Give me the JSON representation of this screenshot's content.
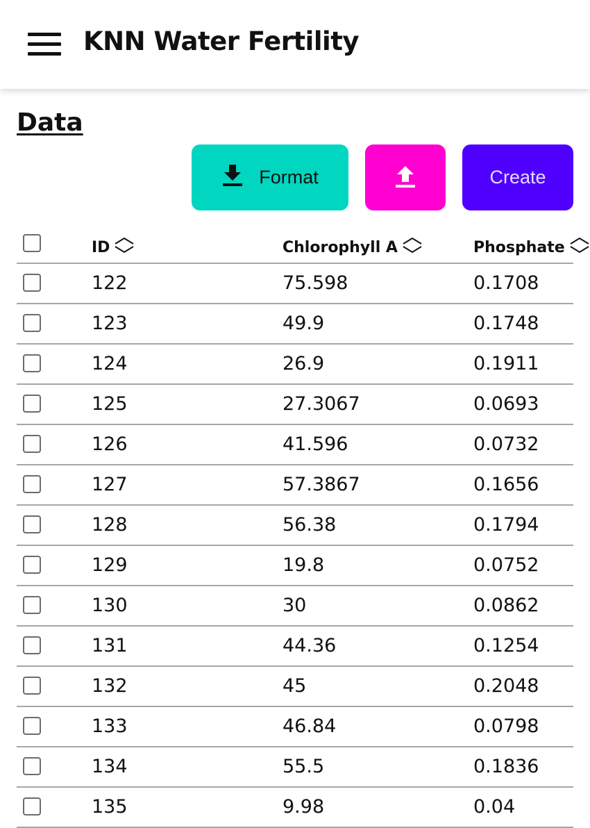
{
  "app": {
    "title": "KNN Water Fertility",
    "menu_icon": "hamburger-menu-icon"
  },
  "section": {
    "title": "Data"
  },
  "toolbar": {
    "format_label": "Format",
    "format_icon": "download-icon",
    "upload_icon": "upload-icon",
    "create_label": "Create",
    "colors": {
      "format": "#00d6c0",
      "upload": "#ff00d0",
      "create": "#5000ff"
    }
  },
  "table": {
    "columns": [
      {
        "label": "ID",
        "sort_icon": "sort-icon"
      },
      {
        "label": "Chlorophyll A",
        "sort_icon": "sort-icon"
      },
      {
        "label": "Phosphate",
        "sort_icon": "sort-icon"
      }
    ],
    "rows": [
      {
        "id": "122",
        "chlorophyll": "75.598",
        "phosphate": "0.1708"
      },
      {
        "id": "123",
        "chlorophyll": "49.9",
        "phosphate": "0.1748"
      },
      {
        "id": "124",
        "chlorophyll": "26.9",
        "phosphate": "0.1911"
      },
      {
        "id": "125",
        "chlorophyll": "27.3067",
        "phosphate": "0.0693"
      },
      {
        "id": "126",
        "chlorophyll": "41.596",
        "phosphate": "0.0732"
      },
      {
        "id": "127",
        "chlorophyll": "57.3867",
        "phosphate": "0.1656"
      },
      {
        "id": "128",
        "chlorophyll": "56.38",
        "phosphate": "0.1794"
      },
      {
        "id": "129",
        "chlorophyll": "19.8",
        "phosphate": "0.0752"
      },
      {
        "id": "130",
        "chlorophyll": "30",
        "phosphate": "0.0862"
      },
      {
        "id": "131",
        "chlorophyll": "44.36",
        "phosphate": "0.1254"
      },
      {
        "id": "132",
        "chlorophyll": "45",
        "phosphate": "0.2048"
      },
      {
        "id": "133",
        "chlorophyll": "46.84",
        "phosphate": "0.0798"
      },
      {
        "id": "134",
        "chlorophyll": "55.5",
        "phosphate": "0.1836"
      },
      {
        "id": "135",
        "chlorophyll": "9.98",
        "phosphate": "0.04"
      }
    ]
  }
}
